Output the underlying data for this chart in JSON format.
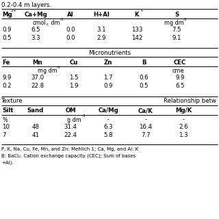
{
  "title_line": "0.2-0.4 m layers.",
  "background_color": "#ffffff",
  "text_color": "#000000",
  "sec1_headers": [
    "Mg",
    "Ca+Mg",
    "Al",
    "H+Al",
    "K",
    "S"
  ],
  "sec1_units_left": "cmol",
  "sec1_units_left_sub": "c",
  "sec1_units_left_rest": " dm",
  "sec1_units_left_sup": "-3",
  "sec1_units_right": "mg dm",
  "sec1_units_right_sup": "-3",
  "sec1_data": [
    [
      "0.9",
      "6.5",
      "0.0",
      "3.1",
      "133",
      "7.5"
    ],
    [
      "0.5",
      "3.3",
      "0.0",
      "2.9",
      "142",
      "9.1"
    ]
  ],
  "sec2_label": "Micronutrients",
  "sec2_headers": [
    "Fe",
    "Mn",
    "Cu",
    "Zn",
    "B",
    "CEC"
  ],
  "sec2_units_left": "mg dm",
  "sec2_units_left_sup": "-3",
  "sec2_units_right": "cme",
  "sec2_data": [
    [
      "9.9",
      "37.0",
      "1.5",
      "1.7",
      "0.6",
      "9.9"
    ],
    [
      "0.2",
      "22.8",
      "1.9",
      "0.9",
      "0.5",
      "6.5"
    ]
  ],
  "sec3_left_label": "Texture",
  "sec3_right_label": "Relationship betw",
  "sec3_headers": [
    "Silt",
    "Sand",
    "OM",
    "Ca/Mg",
    "Ca/K",
    "Mg/K"
  ],
  "sec3_unit_pct": "%",
  "sec3_unit_gdm": "g dm",
  "sec3_unit_gdm_sup": "-3",
  "sec3_unit_dashes": [
    "-",
    "-",
    "-"
  ],
  "sec3_data": [
    [
      "10",
      "48",
      "31.4",
      "6.3",
      "16.4",
      "2.6"
    ],
    [
      "7",
      "41",
      "22.4",
      "5.8",
      "7.7",
      "1.3"
    ]
  ],
  "footnotes": [
    "P, K, Na, Cu, Fe, Mn, and Zn: Mehlich 1; Ca, Mg, and Al: K",
    "B: BaCl₂. Cation exchange capacity (CEC); Sum of bases",
    "+Al)."
  ],
  "figsize": [
    3.2,
    3.2
  ],
  "dpi": 100
}
